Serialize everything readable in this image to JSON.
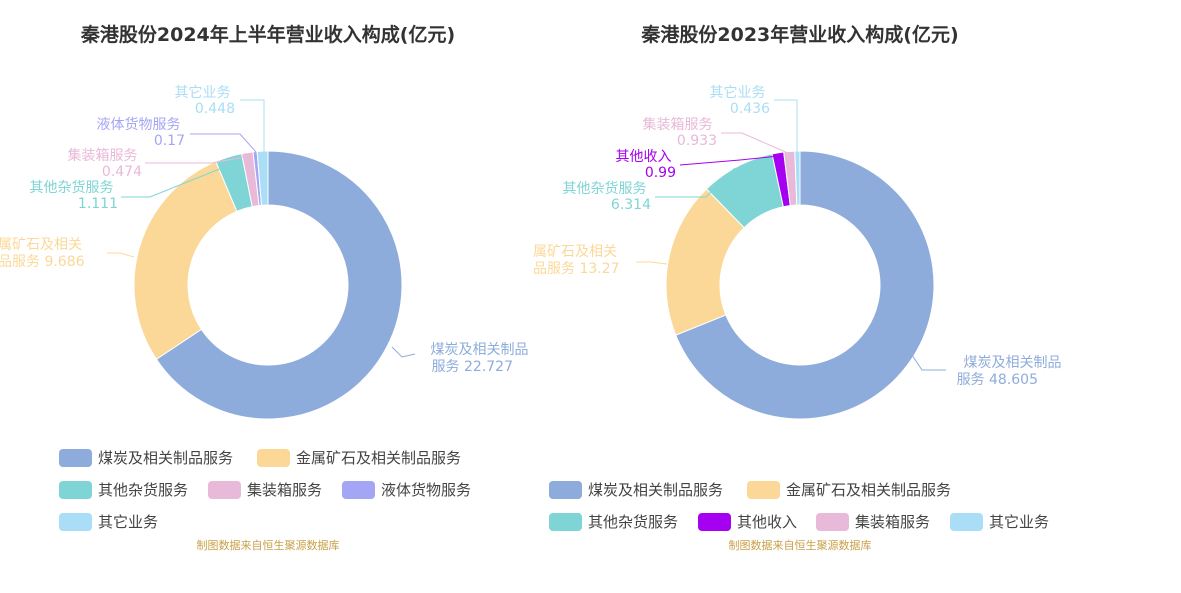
{
  "charts": [
    {
      "title": "秦港股份2024年上半年营业收入构成(亿元)",
      "source": "制图数据来自恒生聚源数据库",
      "legend": [
        {
          "name": "煤炭及相关制品服务",
          "color": "#8eacdb"
        },
        {
          "name": "金属矿石及相关制品服务",
          "color": "#fcd898"
        },
        {
          "name": "其他杂货服务",
          "color": "#7fd5d5"
        },
        {
          "name": "集装箱服务",
          "color": "#e8b9d8"
        },
        {
          "name": "液体货物服务",
          "color": "#a5a5f5"
        },
        {
          "name": "其它业务",
          "color": "#a9def6"
        }
      ],
      "labels": [
        {
          "line1": "煤炭及相关制品",
          "line2": "服务 22.727",
          "color": "#8eacdb"
        },
        {
          "line1": "属矿石及相关",
          "line2": "品服务 9.686",
          "color": "#fcd898"
        },
        {
          "line1": "其他杂货服务",
          "line2": "1.111",
          "color": "#7fd5d5"
        },
        {
          "line1": "集装箱服务",
          "line2": "0.474",
          "color": "#e8b9d8"
        },
        {
          "line1": "液体货物服务",
          "line2": "0.17",
          "color": "#a5a5f5"
        },
        {
          "line1": "其它业务",
          "line2": "0.448",
          "color": "#a9def6"
        }
      ]
    },
    {
      "title": "秦港股份2023年营业收入构成(亿元)",
      "source": "制图数据来自恒生聚源数据库",
      "legend": [
        {
          "name": "煤炭及相关制品服务",
          "color": "#8eacdb"
        },
        {
          "name": "金属矿石及相关制品服务",
          "color": "#fcd898"
        },
        {
          "name": "其他杂货服务",
          "color": "#7fd5d5"
        },
        {
          "name": "其他收入",
          "color": "#a600f0"
        },
        {
          "name": "集装箱服务",
          "color": "#e8b9d8"
        },
        {
          "name": "其它业务",
          "color": "#a9def6"
        }
      ],
      "labels": [
        {
          "line1": "煤炭及相关制品",
          "line2": "服务 48.605",
          "color": "#8eacdb"
        },
        {
          "line1": "属矿石及相关",
          "line2": "品服务 13.27",
          "color": "#fcd898"
        },
        {
          "line1": "其他杂货服务",
          "line2": "6.314",
          "color": "#7fd5d5"
        },
        {
          "line1": "其他收入",
          "line2": "0.99",
          "color": "#a600f0"
        },
        {
          "line1": "集装箱服务",
          "line2": "0.933",
          "color": "#e8b9d8"
        },
        {
          "line1": "其它业务",
          "line2": "0.436",
          "color": "#a9def6"
        }
      ]
    }
  ],
  "chart_data": [
    {
      "type": "pie",
      "title": "秦港股份2024年上半年营业收入构成(亿元)",
      "categories": [
        "煤炭及相关制品服务",
        "金属矿石及相关制品服务",
        "其他杂货服务",
        "集装箱服务",
        "液体货物服务",
        "其它业务"
      ],
      "values": [
        22.727,
        9.686,
        1.111,
        0.474,
        0.17,
        0.448
      ],
      "colors": [
        "#8eacdb",
        "#fcd898",
        "#7fd5d5",
        "#e8b9d8",
        "#a5a5f5",
        "#a9def6"
      ],
      "legend": "bottom"
    },
    {
      "type": "pie",
      "title": "秦港股份2023年营业收入构成(亿元)",
      "categories": [
        "煤炭及相关制品服务",
        "金属矿石及相关制品服务",
        "其他杂货服务",
        "其他收入",
        "集装箱服务",
        "其它业务"
      ],
      "values": [
        48.605,
        13.27,
        6.314,
        0.99,
        0.933,
        0.436
      ],
      "colors": [
        "#8eacdb",
        "#fcd898",
        "#7fd5d5",
        "#a600f0",
        "#e8b9d8",
        "#a9def6"
      ],
      "legend": "bottom"
    }
  ]
}
